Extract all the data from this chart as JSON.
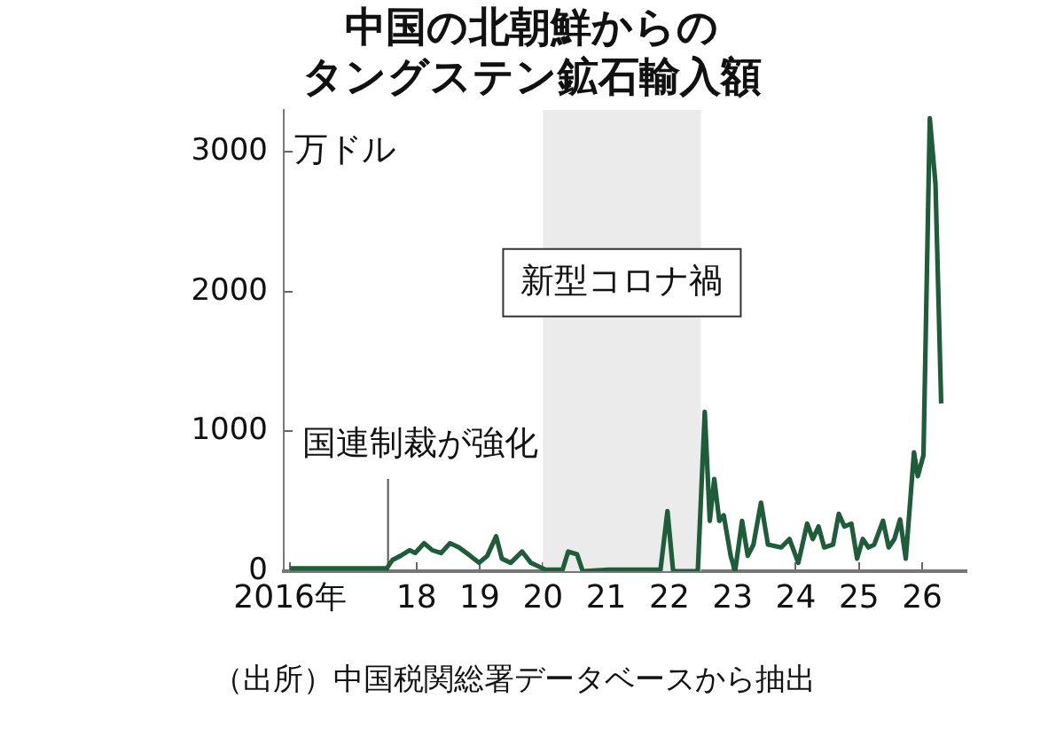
{
  "chart_data": {
    "type": "line",
    "title": "中国の北朝鮮からの",
    "subtitle": "タングステン鉱石輸入額",
    "ylabel": "万ドル",
    "xlim": [
      2015.9,
      2026.7
    ],
    "ylim": [
      0,
      3300
    ],
    "xticks": [
      {
        "value": 2016,
        "label": "2016年"
      },
      {
        "value": 2018,
        "label": "18"
      },
      {
        "value": 2019,
        "label": "19"
      },
      {
        "value": 2020,
        "label": "20"
      },
      {
        "value": 2021,
        "label": "21"
      },
      {
        "value": 2022,
        "label": "22"
      },
      {
        "value": 2023,
        "label": "23"
      },
      {
        "value": 2024,
        "label": "24"
      },
      {
        "value": 2025,
        "label": "25"
      },
      {
        "value": 2026,
        "label": "26"
      }
    ],
    "yticks": [
      0,
      1000,
      2000,
      3000
    ],
    "grid": false,
    "legend": false,
    "marker": "none",
    "line_style": "solid",
    "series": [
      {
        "color": "#1e5c3a",
        "x": [
          2016.0,
          2017.53,
          2017.62,
          2017.75,
          2017.89,
          2017.98,
          2018.12,
          2018.25,
          2018.39,
          2018.53,
          2018.67,
          2018.85,
          2018.99,
          2019.12,
          2019.26,
          2019.35,
          2019.49,
          2019.67,
          2019.81,
          2019.95,
          2020.04,
          2020.31,
          2020.4,
          2020.54,
          2020.63,
          2021.04,
          2021.86,
          2021.97,
          2022.06,
          2022.45,
          2022.56,
          2022.64,
          2022.71,
          2022.79,
          2022.86,
          2022.97,
          2023.04,
          2023.15,
          2023.24,
          2023.33,
          2023.45,
          2023.56,
          2023.77,
          2023.9,
          2024.04,
          2024.18,
          2024.27,
          2024.36,
          2024.45,
          2024.59,
          2024.68,
          2024.77,
          2024.88,
          2024.97,
          2025.06,
          2025.15,
          2025.24,
          2025.38,
          2025.47,
          2025.56,
          2025.65,
          2025.74,
          2025.87,
          2025.93,
          2026.02,
          2026.12,
          2026.21,
          2026.3
        ],
        "values": [
          20,
          20,
          80,
          110,
          150,
          130,
          200,
          150,
          130,
          200,
          170,
          110,
          60,
          110,
          250,
          90,
          60,
          140,
          60,
          30,
          10,
          10,
          140,
          120,
          0,
          10,
          10,
          430,
          0,
          0,
          1140,
          360,
          660,
          360,
          400,
          110,
          0,
          360,
          110,
          190,
          490,
          190,
          170,
          230,
          60,
          340,
          230,
          320,
          170,
          190,
          410,
          320,
          340,
          90,
          230,
          170,
          190,
          360,
          170,
          230,
          370,
          90,
          850,
          680,
          830,
          3240,
          2770,
          1200
        ]
      }
    ],
    "ref_lines": [
      {
        "axis": "x",
        "value": 2017.55,
        "label": "国連制裁が強化",
        "color": "#555555"
      }
    ],
    "bands": [
      {
        "axis": "x",
        "from": 2020.0,
        "to": 2022.5,
        "label": "新型コロナ禍",
        "color": "#ebebeb"
      }
    ],
    "annotations": [
      "（出所）中国税関総署データベースから抽出"
    ]
  }
}
